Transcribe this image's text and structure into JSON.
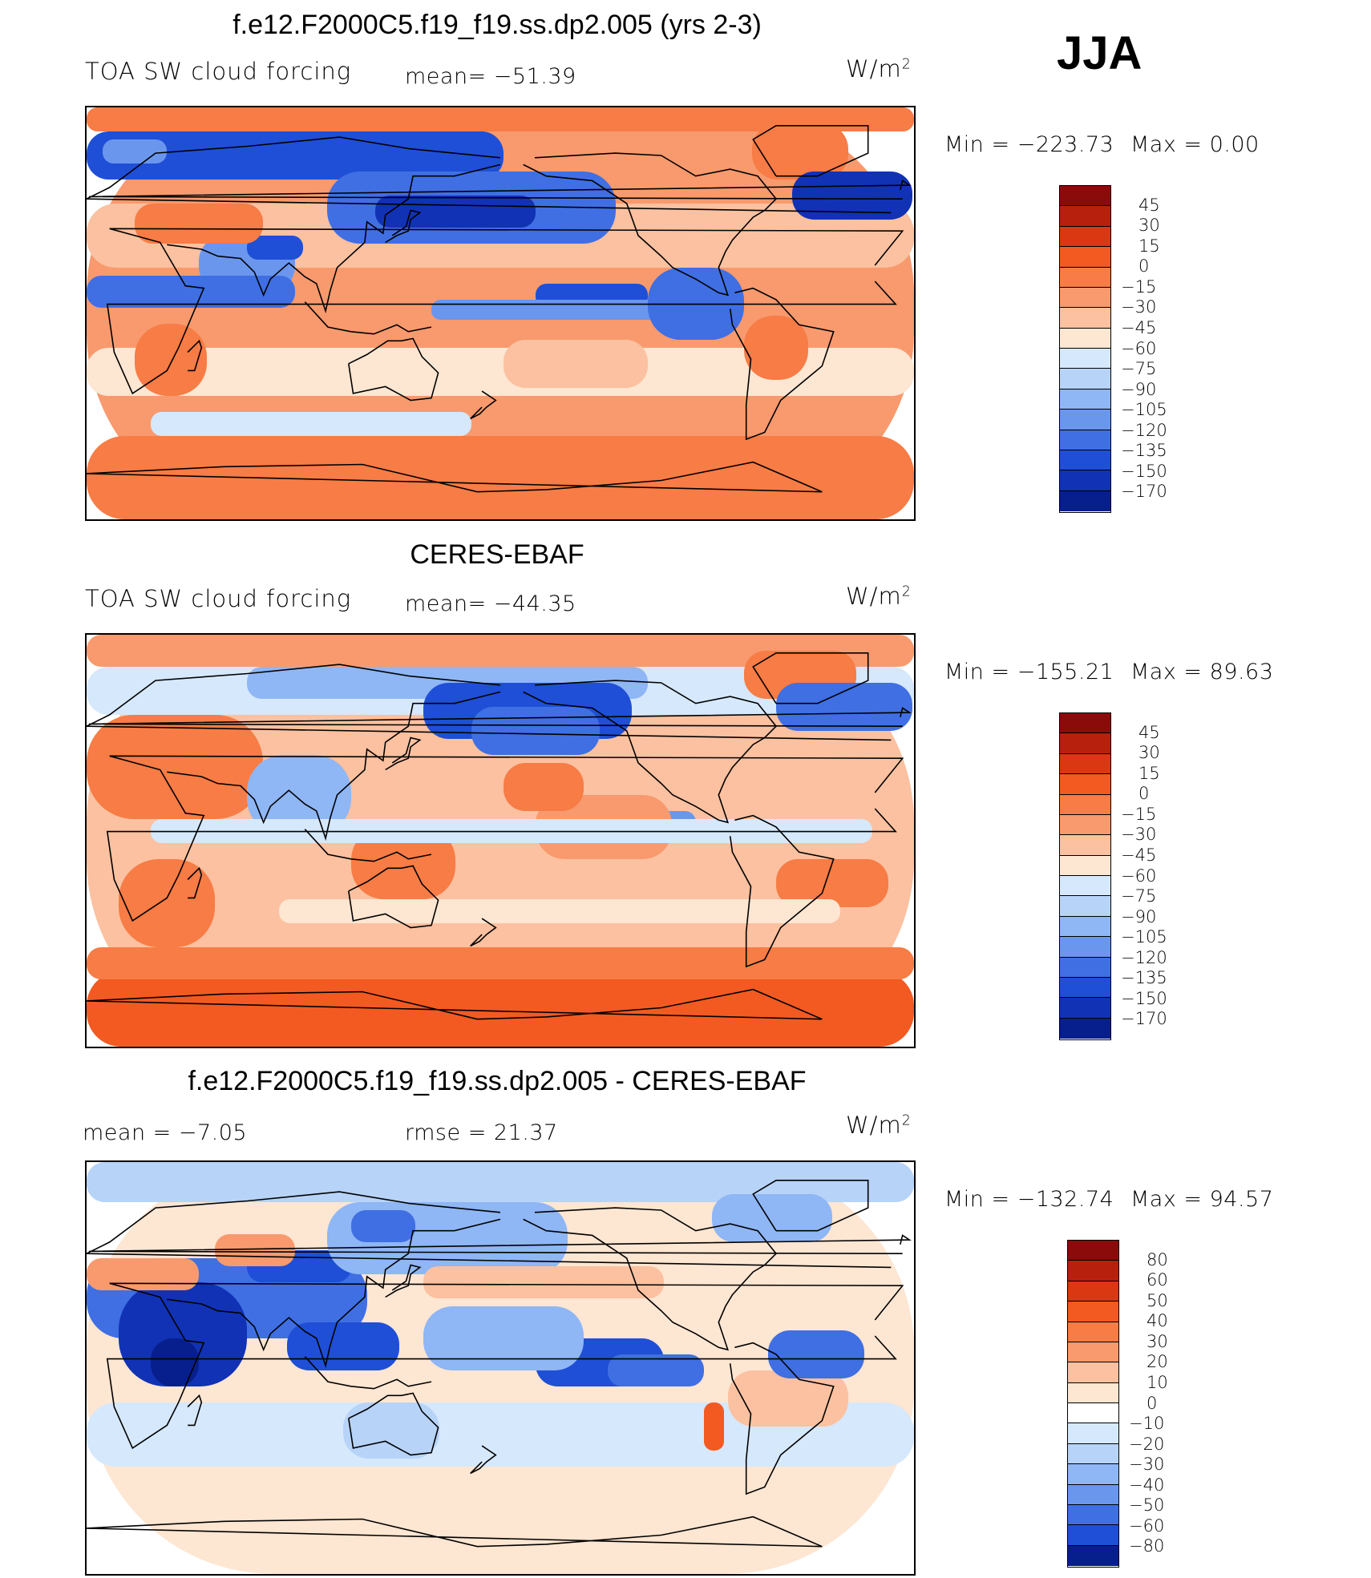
{
  "season": "JJA",
  "panels": [
    {
      "id": "model",
      "title": "f.e12.F2000C5.f19_f19.ss.dp2.005 (yrs 2-3)",
      "left_text": "TOA SW cloud forcing",
      "center_text": "mean=  −51.39",
      "units": "W/m",
      "units_sup": "2",
      "min_label": "Min  =  −223.73",
      "max_label": "Max  =     0.00",
      "colorbar": {
        "labels": [
          "45",
          "30",
          "15",
          "0",
          "−15",
          "−30",
          "−45",
          "−60",
          "−75",
          "−90",
          "−105",
          "−120",
          "−135",
          "−150",
          "−170"
        ],
        "colors": [
          "#8b0a0a",
          "#b8200e",
          "#d93812",
          "#f25a22",
          "#f77c45",
          "#f89a6e",
          "#fbc1a0",
          "#fde6d2",
          "#d6e8fb",
          "#b7d3f8",
          "#8fb6f5",
          "#6a96ee",
          "#3f6fe3",
          "#1f4fd6",
          "#1132b5",
          "#071f8c"
        ]
      },
      "map_style": "model"
    },
    {
      "id": "obs",
      "title": "CERES-EBAF",
      "left_text": "TOA SW cloud forcing",
      "center_text": "mean=  −44.35",
      "units": "W/m",
      "units_sup": "2",
      "min_label": "Min  =  −155.21",
      "max_label": "Max  =   89.63",
      "colorbar": {
        "labels": [
          "45",
          "30",
          "15",
          "0",
          "−15",
          "−30",
          "−45",
          "−60",
          "−75",
          "−90",
          "−105",
          "−120",
          "−135",
          "−150",
          "−170"
        ],
        "colors": [
          "#8b0a0a",
          "#b8200e",
          "#d93812",
          "#f25a22",
          "#f77c45",
          "#f89a6e",
          "#fbc1a0",
          "#fde6d2",
          "#d6e8fb",
          "#b7d3f8",
          "#8fb6f5",
          "#6a96ee",
          "#3f6fe3",
          "#1f4fd6",
          "#1132b5",
          "#071f8c"
        ]
      },
      "map_style": "obs"
    },
    {
      "id": "diff",
      "title": "f.e12.F2000C5.f19_f19.ss.dp2.005 - CERES-EBAF",
      "left_text": "mean  =    −7.05",
      "center_text": "rmse  =    21.37",
      "units": "W/m",
      "units_sup": "2",
      "min_label": "Min  =  −132.74",
      "max_label": "Max  =   94.57",
      "colorbar": {
        "labels": [
          "80",
          "60",
          "50",
          "40",
          "30",
          "20",
          "10",
          "0",
          "−10",
          "−20",
          "−30",
          "−40",
          "−50",
          "−60",
          "−80"
        ],
        "colors": [
          "#8b0a0a",
          "#b8200e",
          "#d93812",
          "#f25a22",
          "#f77c45",
          "#f89a6e",
          "#fbc1a0",
          "#fde6d2",
          "#ffffff",
          "#d6e8fb",
          "#b7d3f8",
          "#8fb6f5",
          "#6a96ee",
          "#3f6fe3",
          "#1f4fd6",
          "#071f8c"
        ]
      },
      "map_style": "diff"
    }
  ]
}
